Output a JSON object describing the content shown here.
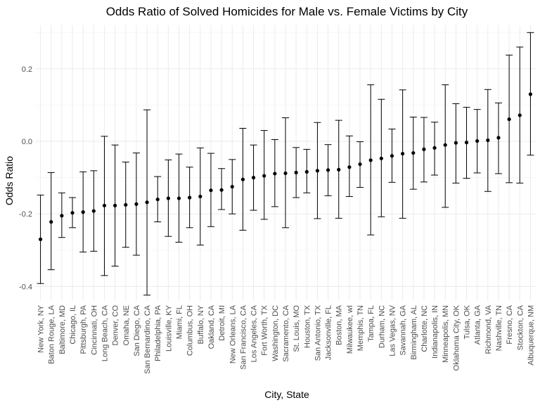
{
  "chart_data": {
    "type": "scatter",
    "title": "Odds Ratio of Solved Homicides for Male vs. Female Victims by City",
    "xlabel": "City, State",
    "ylabel": "Odds Ratio",
    "ylim": [
      -0.44,
      0.32
    ],
    "yticks": [
      -0.4,
      -0.2,
      0.0,
      0.2
    ],
    "ytick_labels": [
      "-0.4",
      "-0.2",
      "0.0",
      "0.2"
    ],
    "grid": true,
    "categories": [
      "New York, NY",
      "Baton Rouge, LA",
      "Baltimore, MD",
      "Chicago, IL",
      "Pittsburgh, PA",
      "Cincinnati, OH",
      "Long Beach, CA",
      "Denver, CO",
      "Omaha, NE",
      "San Diego, CA",
      "San Bernardino, CA",
      "Philadelphia, PA",
      "Louisville, KY",
      "Miami, FL",
      "Columbus, OH",
      "Buffalo, NY",
      "Oakland, CA",
      "Detroit, MI",
      "New Orleans, LA",
      "San Francisco, CA",
      "Los Angeles, CA",
      "Fort Worth, TX",
      "Washington, DC",
      "Sacramento, CA",
      "St. Louis, MO",
      "Houston, TX",
      "San Antonio, TX",
      "Jacksonville, FL",
      "Boston, MA",
      "Milwaukee, wI",
      "Memphis, TN",
      "Tampa, FL",
      "Durham, NC",
      "Las Vegas, NV",
      "Savannah, GA",
      "Birmingham, AL",
      "Charlotte, NC",
      "Indianapolis, IN",
      "Minneapolis, MN",
      "Oklahoma City, OK",
      "Tulsa, OK",
      "Atlanta, GA",
      "Richmond, VA",
      "Nashville, TN",
      "Fresno, CA",
      "Stockton, CA",
      "Albuquerque, NM"
    ],
    "series": [
      {
        "values": [
          -0.27,
          -0.222,
          -0.205,
          -0.197,
          -0.195,
          -0.192,
          -0.177,
          -0.177,
          -0.175,
          -0.173,
          -0.168,
          -0.16,
          -0.157,
          -0.157,
          -0.155,
          -0.152,
          -0.135,
          -0.134,
          -0.125,
          -0.105,
          -0.1,
          -0.095,
          -0.089,
          -0.088,
          -0.086,
          -0.084,
          -0.081,
          -0.079,
          -0.078,
          -0.071,
          -0.063,
          -0.052,
          -0.047,
          -0.04,
          -0.034,
          -0.032,
          -0.022,
          -0.018,
          -0.01,
          -0.004,
          -0.003,
          0.001,
          0.003,
          0.01,
          0.061,
          0.072,
          0.13
        ],
        "lower": [
          -0.392,
          -0.354,
          -0.265,
          -0.238,
          -0.305,
          -0.303,
          -0.37,
          -0.344,
          -0.292,
          -0.314,
          -0.424,
          -0.222,
          -0.262,
          -0.278,
          -0.238,
          -0.286,
          -0.235,
          -0.188,
          -0.2,
          -0.245,
          -0.19,
          -0.215,
          -0.18,
          -0.238,
          -0.155,
          -0.142,
          -0.213,
          -0.15,
          -0.212,
          -0.152,
          -0.127,
          -0.258,
          -0.208,
          -0.113,
          -0.212,
          -0.132,
          -0.112,
          -0.093,
          -0.182,
          -0.115,
          -0.102,
          -0.087,
          -0.138,
          -0.089,
          -0.114,
          -0.115,
          -0.038
        ],
        "upper": [
          -0.148,
          -0.086,
          -0.142,
          -0.155,
          -0.084,
          -0.081,
          0.014,
          -0.01,
          -0.057,
          -0.032,
          0.087,
          -0.097,
          -0.051,
          -0.035,
          -0.071,
          -0.018,
          -0.033,
          -0.075,
          -0.05,
          0.036,
          -0.01,
          0.03,
          0.005,
          0.065,
          -0.017,
          -0.022,
          0.052,
          -0.009,
          0.058,
          0.015,
          -0.001,
          0.156,
          0.116,
          0.034,
          0.142,
          0.067,
          0.066,
          0.053,
          0.156,
          0.104,
          0.094,
          0.088,
          0.143,
          0.106,
          0.238,
          0.26,
          0.3
        ]
      }
    ]
  }
}
